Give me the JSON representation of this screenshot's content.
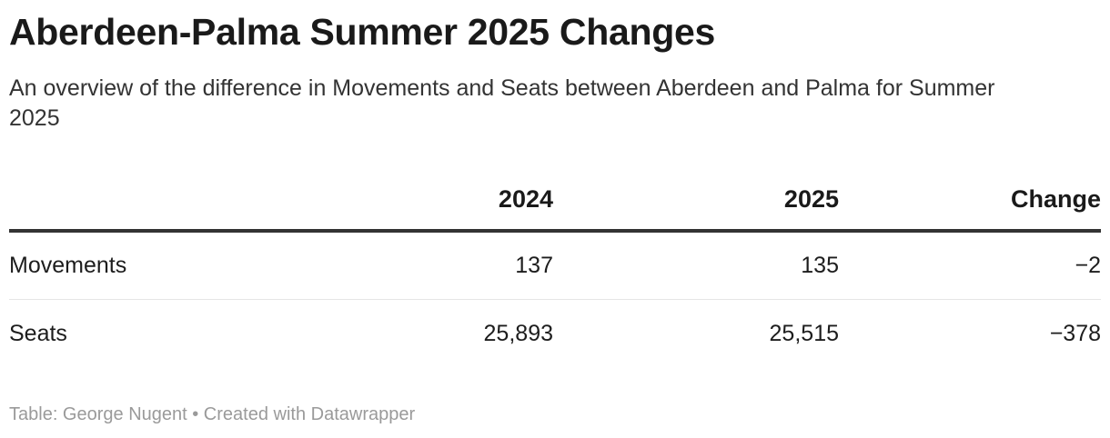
{
  "chart_data": {
    "type": "table",
    "title": "Aberdeen-Palma Summer 2025 Changes",
    "subtitle": "An overview of the difference in Movements and Seats between Aberdeen and Palma for Summer 2025",
    "columns": [
      "",
      "2024",
      "2025",
      "Change"
    ],
    "rows": [
      {
        "label": "Movements",
        "y2024": "137",
        "y2025": "135",
        "change": "−2"
      },
      {
        "label": "Seats",
        "y2024": "25,893",
        "y2025": "25,515",
        "change": "−378"
      }
    ],
    "footer": "Table: George Nugent • Created with Datawrapper"
  },
  "colors": {
    "text": "#1d1d1d",
    "header_rule": "#333333",
    "row_rule": "#e5e5e5",
    "footer": "#9a9a9a"
  }
}
